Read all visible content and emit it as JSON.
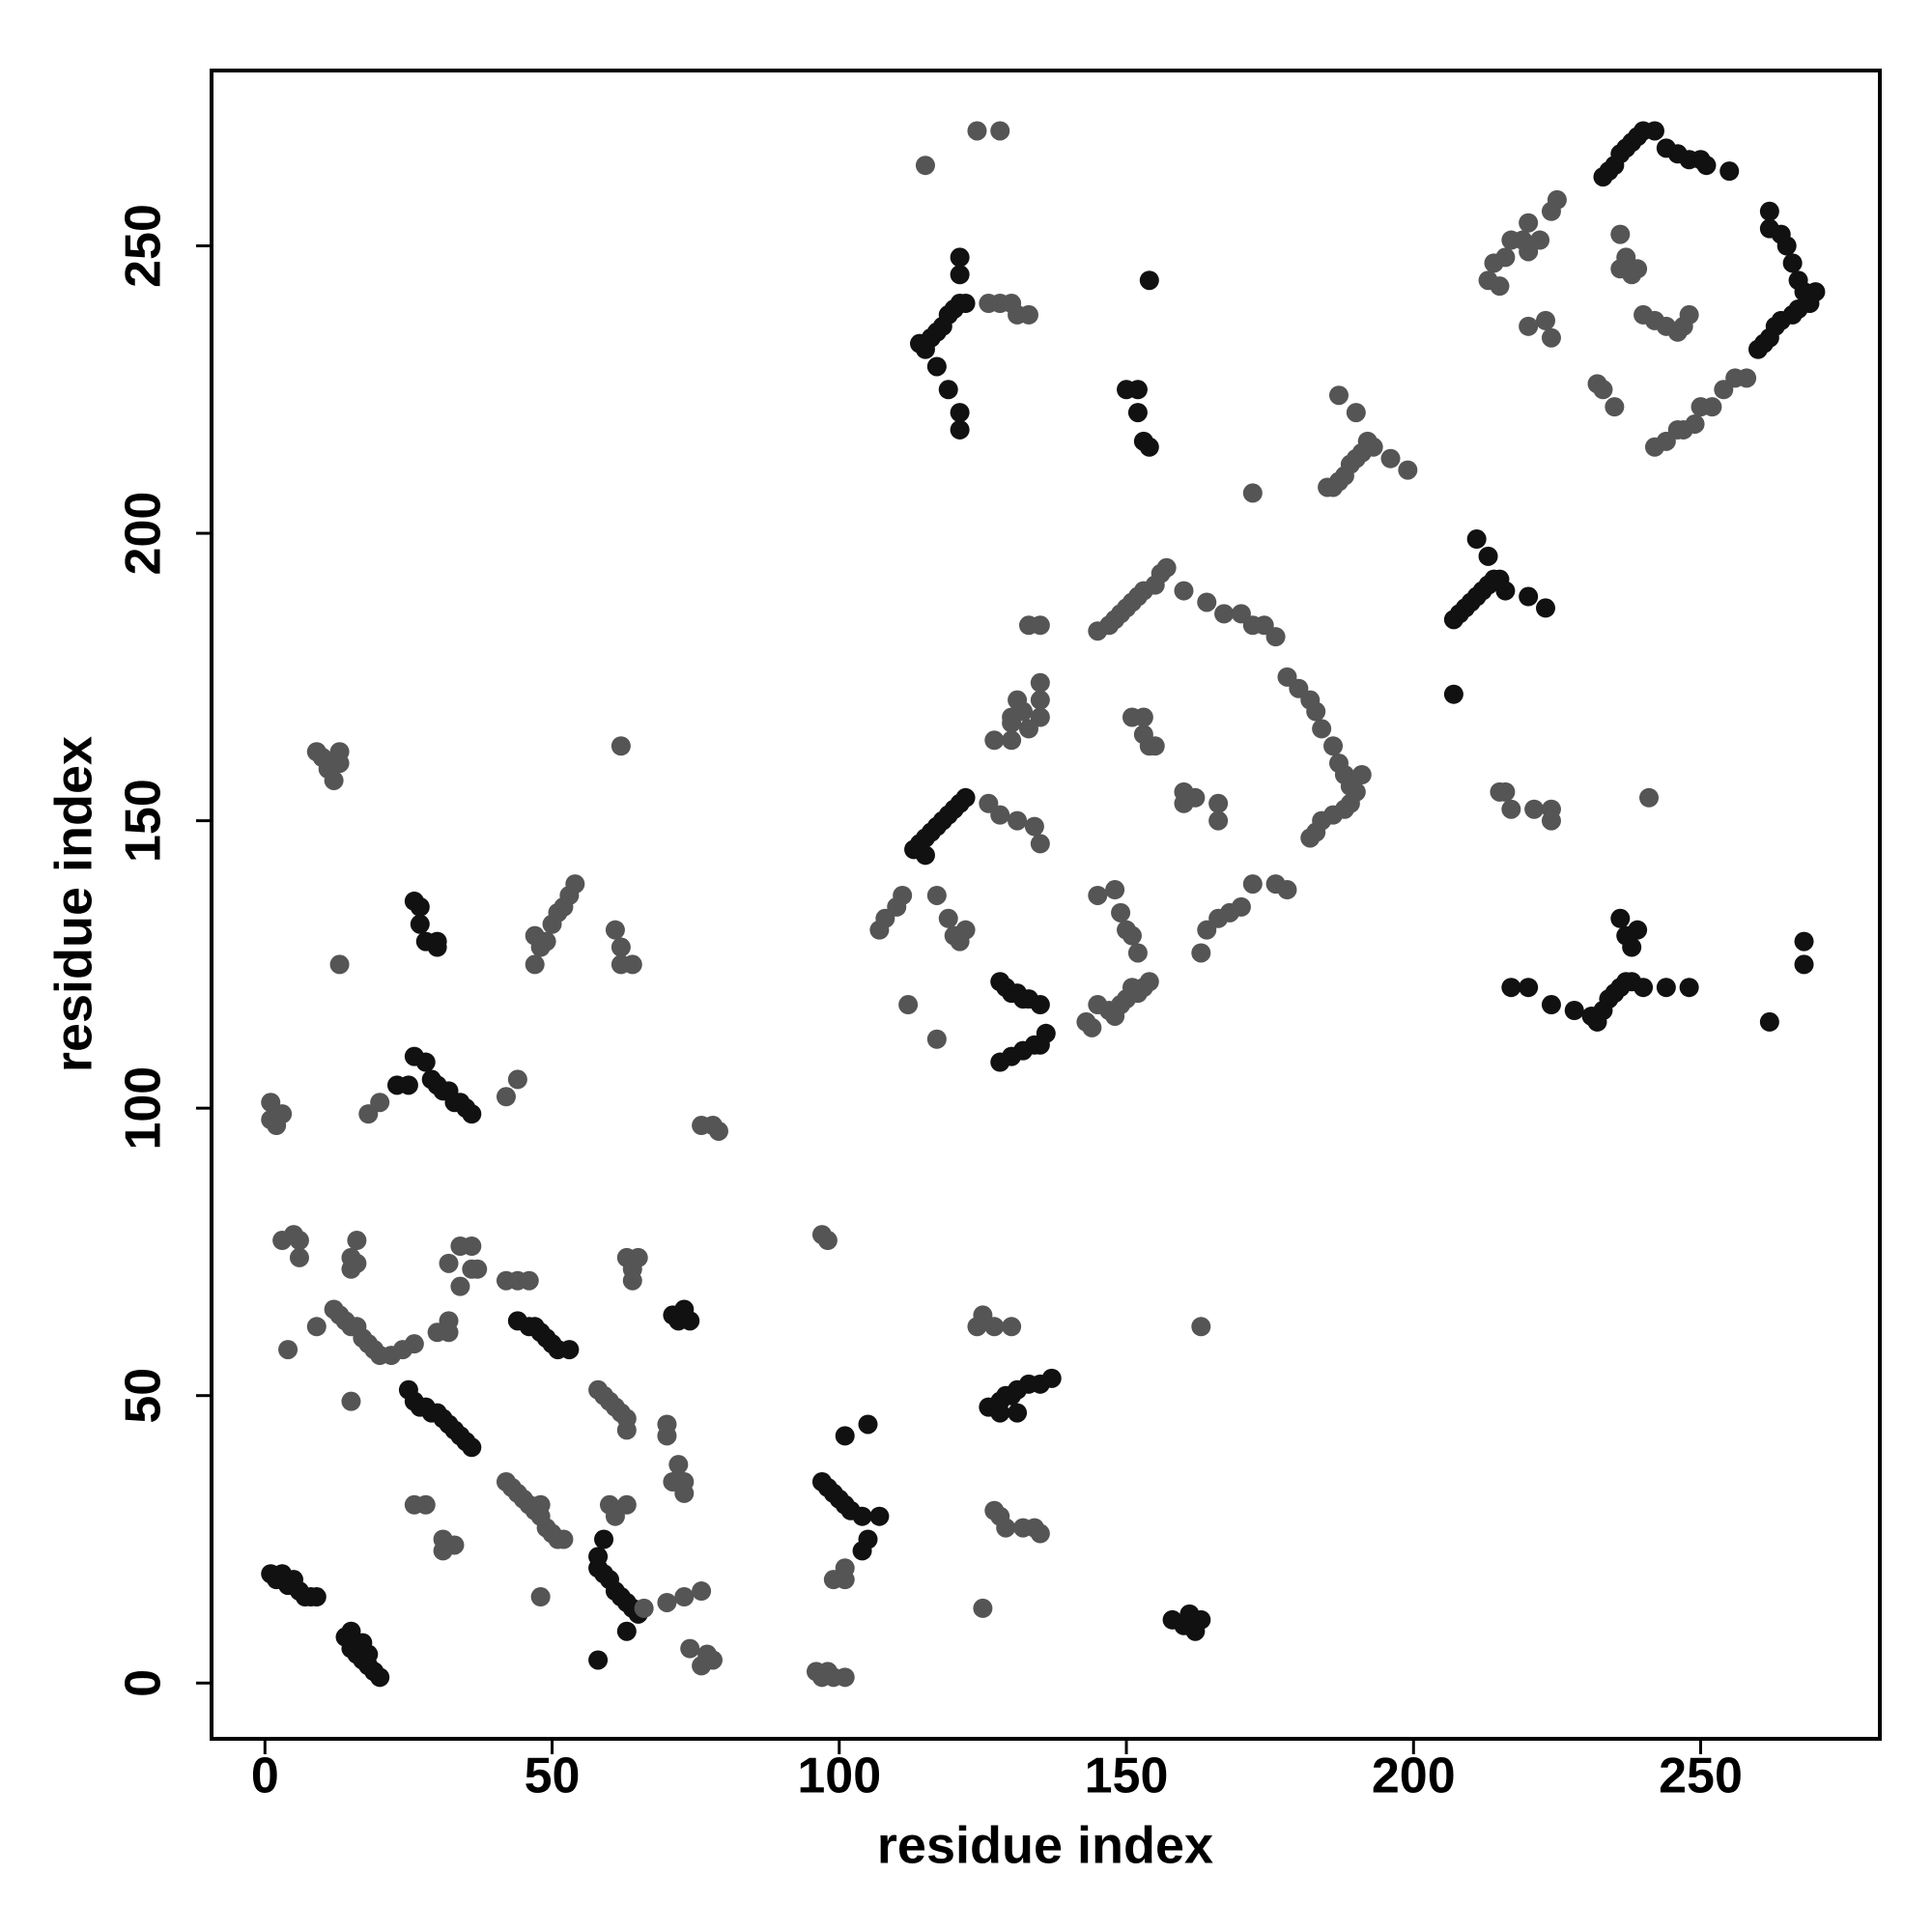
{
  "chart_data": {
    "type": "scatter",
    "xlabel": "residue index",
    "ylabel": "residue index",
    "xlim": [
      -9.3,
      281.2
    ],
    "ylim": [
      -9.7,
      280.5
    ],
    "xticks": [
      0,
      50,
      100,
      150,
      200,
      250
    ],
    "yticks": [
      0,
      50,
      100,
      150,
      200,
      250
    ],
    "series": [
      {
        "color": "#111111",
        "x": [
          1,
          2,
          3,
          4,
          5,
          6,
          7,
          8,
          9,
          14,
          15,
          15,
          16,
          17,
          18,
          19,
          20,
          17,
          18,
          25,
          26,
          27,
          28,
          29,
          30,
          31,
          32,
          33,
          34,
          35,
          36,
          44,
          46,
          47,
          48,
          49,
          50,
          51,
          53,
          58,
          58,
          59,
          60,
          61,
          62,
          63,
          64,
          65,
          59,
          63,
          58,
          71,
          72,
          73,
          74,
          97,
          98,
          99,
          100,
          101,
          102,
          104,
          107,
          105,
          101,
          105,
          104,
          126,
          127,
          128,
          129,
          130,
          131,
          133,
          135,
          137,
          128,
          131,
          158,
          160,
          161,
          162,
          163,
          26,
          27,
          27,
          28,
          30,
          30,
          26,
          28,
          29,
          30,
          31,
          32,
          33,
          34,
          35,
          36,
          23,
          25,
          114,
          115,
          116,
          117,
          118,
          119,
          120,
          121,
          122,
          121,
          121,
          119,
          121,
          121,
          117,
          150,
          152,
          152,
          153,
          154,
          154,
          207,
          208,
          209,
          210,
          211,
          212,
          213,
          214,
          215,
          216,
          211,
          213,
          220,
          223,
          207,
          233,
          234,
          235,
          236,
          237,
          238,
          239,
          240,
          242,
          244,
          246,
          248,
          250,
          251,
          255,
          262,
          262,
          264,
          265,
          266,
          267,
          268,
          270,
          269,
          267,
          266,
          264,
          263,
          262,
          261,
          260,
          113,
          114,
          115,
          116,
          117,
          118,
          119,
          120,
          121,
          122,
          115,
          128,
          129,
          130,
          131,
          132,
          133,
          135,
          136,
          135,
          134,
          132,
          130,
          128,
          217,
          220,
          224,
          228,
          231,
          232,
          233,
          234,
          235,
          236,
          237,
          238,
          240,
          244,
          248,
          236,
          237,
          238,
          239,
          262,
          268,
          268
        ],
        "values": [
          19,
          18,
          19,
          17,
          18,
          16,
          15,
          15,
          15,
          8,
          9,
          6,
          5,
          4,
          3,
          2,
          1,
          7,
          5,
          51,
          49,
          48,
          48,
          47,
          47,
          46,
          45,
          44,
          43,
          42,
          41,
          63,
          62,
          62,
          61,
          60,
          59,
          58,
          58,
          22,
          20,
          19,
          18,
          16,
          15,
          14,
          13,
          12,
          25,
          9,
          4,
          64,
          63,
          65,
          63,
          35,
          34,
          33,
          32,
          31,
          30,
          29,
          29,
          45,
          43,
          25,
          23,
          48,
          48,
          49,
          50,
          50,
          51,
          52,
          52,
          53,
          47,
          47,
          11,
          10,
          12,
          9,
          11,
          136,
          135,
          132,
          129,
          129,
          128,
          109,
          108,
          105,
          104,
          103,
          103,
          101,
          101,
          100,
          99,
          104,
          104,
          233,
          232,
          234,
          235,
          236,
          238,
          239,
          240,
          240,
          248,
          245,
          225,
          221,
          218,
          229,
          225,
          225,
          221,
          216,
          215,
          244,
          185,
          186,
          187,
          188,
          189,
          190,
          191,
          192,
          192,
          190,
          199,
          196,
          189,
          187,
          172,
          262,
          263,
          264,
          266,
          267,
          268,
          269,
          270,
          270,
          267,
          266,
          265,
          265,
          264,
          263,
          256,
          253,
          252,
          250,
          247,
          244,
          242,
          242,
          240,
          239,
          238,
          237,
          236,
          234,
          233,
          232,
          145,
          146,
          147,
          148,
          149,
          150,
          151,
          152,
          153,
          154,
          144,
          122,
          121,
          120,
          120,
          119,
          119,
          118,
          113,
          111,
          111,
          110,
          109,
          108,
          121,
          121,
          118,
          117,
          116,
          115,
          117,
          119,
          120,
          121,
          122,
          122,
          121,
          121,
          121,
          133,
          130,
          128,
          131,
          115,
          125,
          129
        ]
      },
      {
        "color": "#555555",
        "x": [
          12,
          13,
          14,
          15,
          16,
          17,
          18,
          19,
          20,
          22,
          24,
          26,
          9,
          4,
          15,
          16,
          16,
          15,
          3,
          5,
          6,
          6,
          42,
          43,
          44,
          45,
          46,
          47,
          48,
          49,
          50,
          51,
          52,
          42,
          44,
          46,
          32,
          34,
          36,
          36,
          37,
          34,
          30,
          32,
          32,
          58,
          59,
          60,
          61,
          62,
          63,
          63,
          63,
          64,
          65,
          64,
          70,
          70,
          71,
          72,
          73,
          73,
          96,
          97,
          98,
          99,
          101,
          97,
          98,
          99,
          101,
          101,
          74,
          76,
          77,
          78,
          76,
          66,
          48,
          63,
          61,
          60,
          33,
          26,
          28,
          31,
          31,
          15,
          48,
          70,
          73,
          124,
          125,
          127,
          130,
          127,
          128,
          129,
          132,
          134,
          135,
          125,
          163,
          9,
          10,
          11,
          12,
          13,
          13,
          13,
          47,
          48,
          49,
          50,
          51,
          52,
          53,
          54,
          47,
          61,
          62,
          62,
          64,
          18,
          20,
          42,
          44,
          1,
          1,
          2,
          3,
          62,
          76,
          78,
          79,
          115,
          124,
          128,
          126,
          128,
          130,
          131,
          133,
          185,
          186,
          187,
          188,
          189,
          190,
          191,
          192,
          193,
          196,
          199,
          187,
          190,
          172,
          258,
          256,
          254,
          252,
          250,
          249,
          247,
          246,
          244,
          242,
          220,
          219,
          217,
          216,
          214,
          213,
          215,
          222,
          224,
          225,
          220,
          224,
          223,
          232,
          233,
          235,
          236,
          237,
          236,
          238,
          239,
          240,
          242,
          244,
          246,
          247,
          248,
          220,
          145,
          147,
          148,
          149,
          150,
          151,
          152,
          153,
          155,
          156,
          157,
          160,
          164,
          167,
          170,
          172,
          174,
          176,
          178,
          180,
          182,
          183,
          184,
          186,
          187,
          188,
          189,
          190,
          191,
          189,
          188,
          186,
          184,
          183,
          182,
          178,
          176,
          172,
          170,
          168,
          166,
          164,
          163,
          160,
          160,
          162,
          166,
          166,
          151,
          153,
          153,
          154,
          155,
          145,
          148,
          149,
          150,
          151,
          152,
          145,
          147,
          148,
          149,
          150,
          151,
          152,
          153,
          154,
          143,
          144,
          135,
          135,
          135,
          135,
          133,
          131,
          130,
          130,
          127,
          133,
          126,
          128,
          131,
          134,
          135,
          130,
          132,
          107,
          108,
          110,
          111,
          117,
          119,
          120,
          121,
          122,
          117,
          112,
          215,
          216,
          217,
          221,
          224,
          224,
          241
        ],
        "values": [
          65,
          64,
          63,
          62,
          62,
          60,
          59,
          58,
          57,
          57,
          58,
          59,
          62,
          58,
          74,
          73,
          77,
          72,
          77,
          78,
          77,
          74,
          35,
          34,
          33,
          32,
          31,
          30,
          29,
          27,
          26,
          25,
          25,
          70,
          70,
          70,
          73,
          76,
          76,
          72,
          72,
          69,
          61,
          61,
          63,
          51,
          50,
          49,
          48,
          47,
          46,
          44,
          74,
          72,
          74,
          70,
          45,
          43,
          35,
          38,
          35,
          33,
          2,
          1,
          2,
          1,
          1,
          78,
          77,
          18,
          20,
          18,
          6,
          3,
          5,
          4,
          16,
          13,
          31,
          31,
          29,
          31,
          24,
          31,
          31,
          23,
          25,
          49,
          15,
          14,
          15,
          62,
          64,
          62,
          62,
          30,
          29,
          27,
          27,
          27,
          26,
          13,
          62,
          162,
          161,
          159,
          157,
          160,
          162,
          125,
          130,
          128,
          129,
          132,
          134,
          135,
          137,
          139,
          125,
          131,
          128,
          125,
          125,
          99,
          101,
          102,
          105,
          101,
          98,
          97,
          99,
          163,
          97,
          97,
          96,
          264,
          270,
          270,
          240,
          240,
          240,
          238,
          238,
          208,
          208,
          209,
          210,
          212,
          213,
          214,
          216,
          215,
          213,
          211,
          224,
          221,
          207,
          227,
          227,
          225,
          222,
          222,
          219,
          218,
          218,
          216,
          215,
          254,
          251,
          251,
          248,
          247,
          244,
          243,
          251,
          256,
          258,
          236,
          234,
          237,
          226,
          225,
          222,
          252,
          248,
          246,
          245,
          246,
          238,
          237,
          236,
          235,
          236,
          238,
          249,
          183,
          184,
          185,
          186,
          187,
          188,
          189,
          190,
          191,
          193,
          194,
          190,
          188,
          186,
          186,
          184,
          184,
          182,
          175,
          173,
          171,
          169,
          166,
          163,
          160,
          158,
          156,
          155,
          158,
          153,
          152,
          151,
          150,
          148,
          147,
          138,
          139,
          139,
          135,
          134,
          133,
          131,
          127,
          153,
          155,
          154,
          150,
          153,
          168,
          168,
          165,
          163,
          163,
          137,
          138,
          134,
          131,
          130,
          127,
          118,
          117,
          116,
          118,
          119,
          121,
          120,
          121,
          122,
          115,
          114,
          174,
          171,
          168,
          184,
          184,
          171,
          168,
          164,
          164,
          166,
          153,
          151,
          150,
          149,
          146,
          167,
          169,
          131,
          133,
          135,
          137,
          137,
          133,
          130,
          129,
          131,
          112,
          118,
          155,
          155,
          152,
          152,
          150,
          152,
          154
        ]
      }
    ]
  }
}
